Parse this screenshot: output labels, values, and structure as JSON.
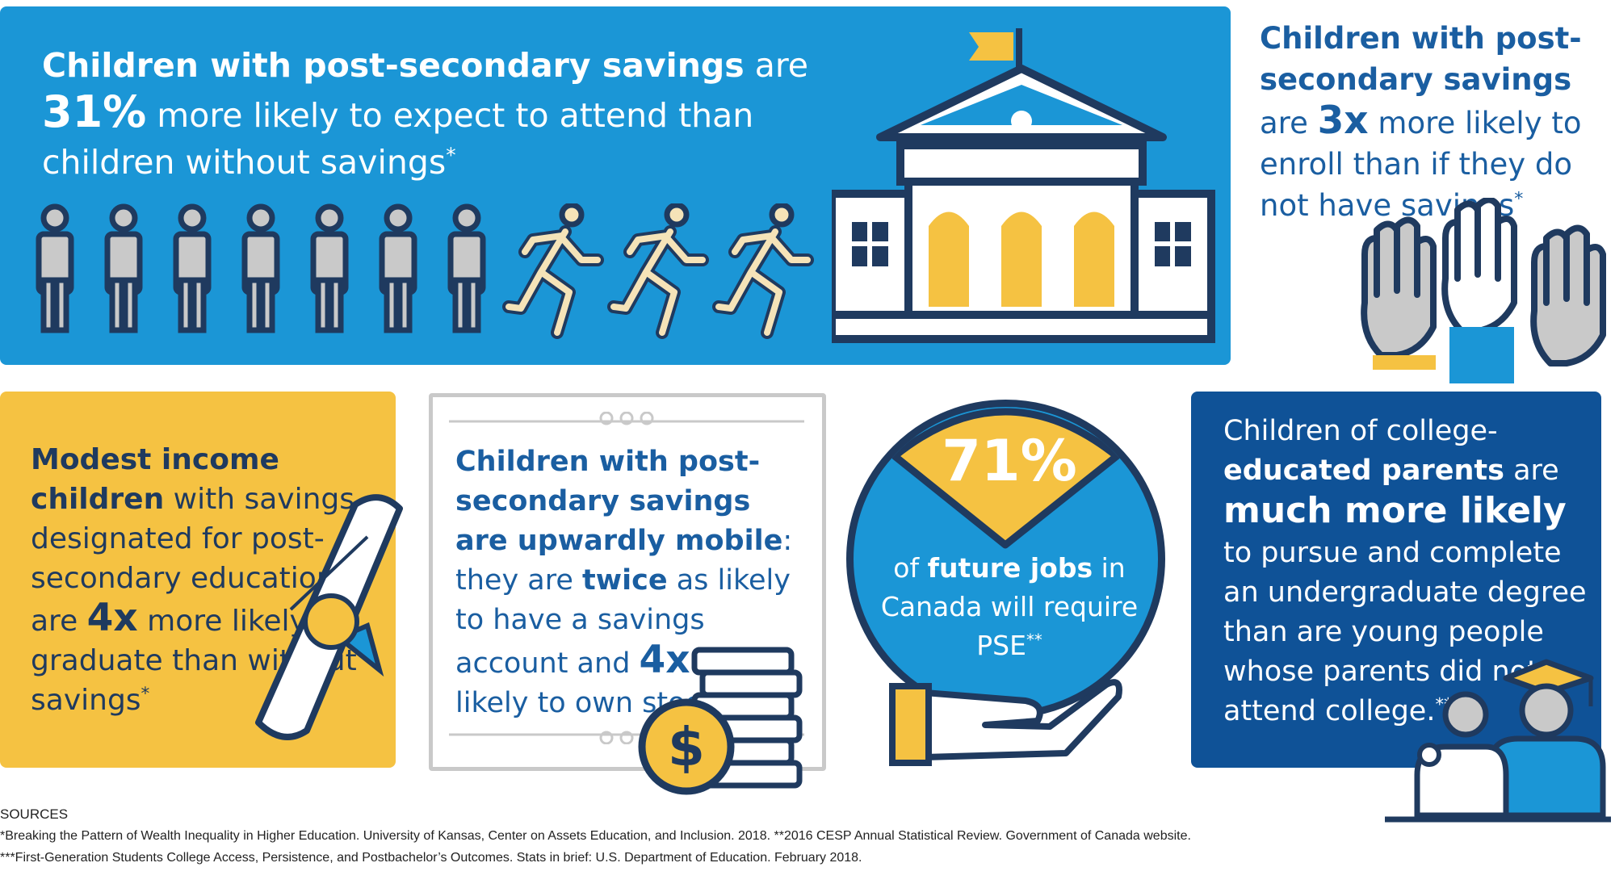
{
  "top_panel": {
    "line1_bold": "Children with post-secondary savings",
    "line1_rest": " are",
    "stat": "31%",
    "line2_rest": " more likely to expect to attend than children without savings",
    "mark": "*",
    "figures_icon": "people-standing-and-running-icons"
  },
  "top_right": {
    "line1_bold": "Children with post-secondary savings",
    "pre": "are ",
    "stat": "3x",
    "rest": " more likely to enroll than if they do not have savings",
    "mark": "*",
    "icon": "raised-hands-icon"
  },
  "yellow_panel": {
    "bold": "Modest income children",
    "mid": " with savings designated for post-secondary education are ",
    "stat": "4x",
    "rest": " more likely to graduate than without savings",
    "mark": "*",
    "icon": "diploma-icon"
  },
  "cert_panel": {
    "bold": "Children with post-secondary savings are upwardly mobile",
    "mid1": ": they are ",
    "twice": "twice",
    "mid2": " as likely to have a savings account and ",
    "stat": "4x",
    "rest": " more likely to own stocks.",
    "icon": "coin-stack-icon"
  },
  "circle": {
    "stat": "71%",
    "pre": "of ",
    "bold": "future jobs",
    "rest": " in Canada will require PSE",
    "mark": "**",
    "icon": "hand-holding-circle-icon"
  },
  "dark_panel": {
    "line1": "Children of college-",
    "bold_line": "educated parents",
    "rest1": " are ",
    "big": "much more likely",
    "rest2": " to pursue and complete an undergraduate degree than are young people whose parents did not attend college.",
    "mark": "***",
    "icon": "graduate-and-parent-icon"
  },
  "sources": {
    "header": "SOURCES",
    "line1": "*Breaking the Pattern of Wealth Inequality in Higher Education. University of Kansas, Center on Assets Education, and Inclusion. 2018. **2016 CESP Annual Statistical Review. Government of Canada website.",
    "line2": "***First-Generation Students College Access, Persistence, and Postbachelor’s Outcomes. Stats in brief: U.S. Department of Education. February 2018."
  },
  "colors": {
    "blue": "#1b96d6",
    "dark_blue": "#0f5297",
    "navy": "#1f3a5f",
    "yellow": "#f5c242",
    "gray": "#c9c9c9"
  }
}
